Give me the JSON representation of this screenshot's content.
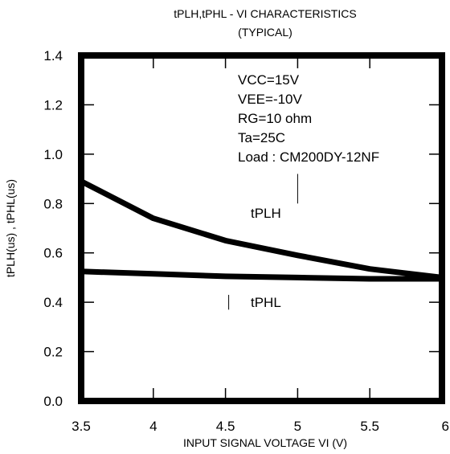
{
  "chart_data": {
    "type": "line",
    "title": "tPLH,tPHL - VI CHARACTERISTICS",
    "subtitle": "(TYPICAL)",
    "xlabel": "INPUT SIGNAL VOLTAGE VI (V)",
    "ylabel": "tPLH(us) , tPHL(us)",
    "xlim": [
      3.5,
      6
    ],
    "ylim": [
      0,
      1.4
    ],
    "x_ticks": [
      "3.5",
      "4",
      "4.5",
      "5",
      "5.5",
      "6"
    ],
    "y_ticks": [
      "0.0",
      "0.2",
      "0.4",
      "0.6",
      "0.8",
      "1.0",
      "1.2",
      "1.4"
    ],
    "grid": false,
    "conditions": [
      "VCC=15V",
      "VEE=-10V",
      "RG=10 ohm",
      "Ta=25C",
      "Load : CM200DY-12NF"
    ],
    "series": [
      {
        "name": "tPLH",
        "x": [
          3.5,
          4.0,
          4.5,
          5.0,
          5.5,
          6.0
        ],
        "y": [
          0.89,
          0.74,
          0.65,
          0.59,
          0.535,
          0.5
        ]
      },
      {
        "name": "tPHL",
        "x": [
          3.5,
          4.0,
          4.5,
          5.0,
          5.5,
          6.0
        ],
        "y": [
          0.525,
          0.515,
          0.505,
          0.5,
          0.495,
          0.495
        ]
      }
    ]
  }
}
